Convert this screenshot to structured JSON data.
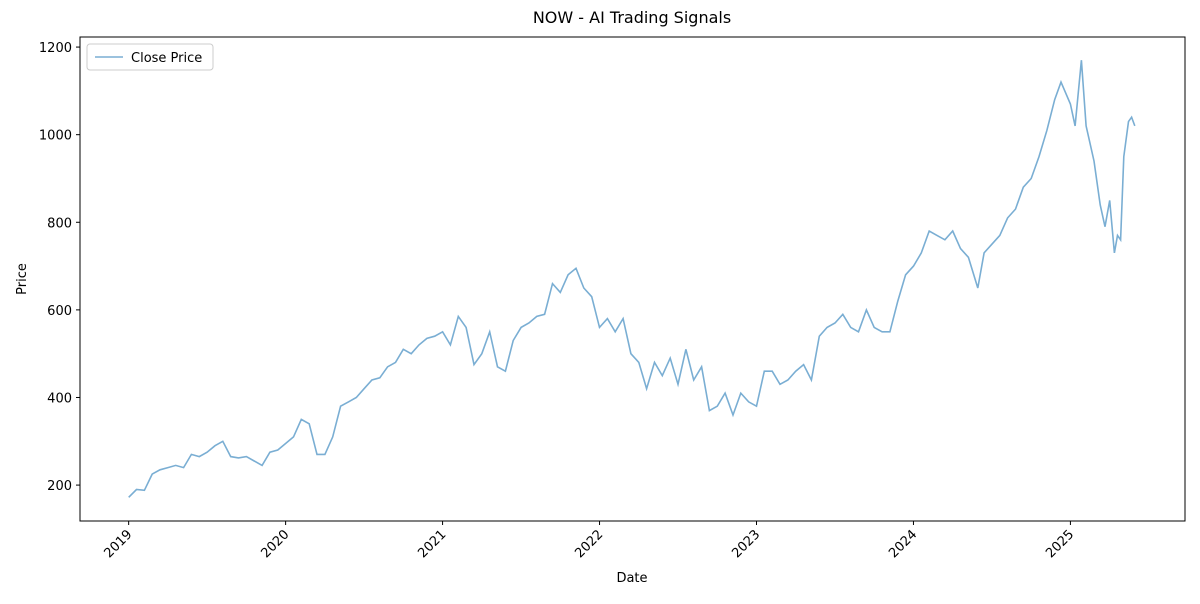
{
  "chart_data": {
    "type": "line",
    "title": "NOW - AI Trading Signals",
    "x_label": "Date",
    "y_label": "Price",
    "xlim": [
      2018.69,
      2025.73
    ],
    "ylim": [
      118,
      1223
    ],
    "xticks": [
      2019,
      2020,
      2021,
      2022,
      2023,
      2024,
      2025
    ],
    "yticks": [
      200,
      400,
      600,
      800,
      1000,
      1200
    ],
    "legend_position": "upper left",
    "x": [
      2019.0,
      2019.05,
      2019.1,
      2019.15,
      2019.2,
      2019.25,
      2019.3,
      2019.35,
      2019.4,
      2019.45,
      2019.5,
      2019.55,
      2019.6,
      2019.65,
      2019.7,
      2019.75,
      2019.8,
      2019.85,
      2019.9,
      2019.95,
      2020.0,
      2020.05,
      2020.1,
      2020.15,
      2020.2,
      2020.25,
      2020.3,
      2020.35,
      2020.4,
      2020.45,
      2020.5,
      2020.55,
      2020.6,
      2020.65,
      2020.7,
      2020.75,
      2020.8,
      2020.85,
      2020.9,
      2020.95,
      2021.0,
      2021.05,
      2021.1,
      2021.15,
      2021.2,
      2021.25,
      2021.3,
      2021.35,
      2021.4,
      2021.45,
      2021.5,
      2021.55,
      2021.6,
      2021.65,
      2021.7,
      2021.75,
      2021.8,
      2021.85,
      2021.9,
      2021.95,
      2022.0,
      2022.05,
      2022.1,
      2022.15,
      2022.2,
      2022.25,
      2022.3,
      2022.35,
      2022.4,
      2022.45,
      2022.5,
      2022.55,
      2022.6,
      2022.65,
      2022.7,
      2022.75,
      2022.8,
      2022.85,
      2022.9,
      2022.95,
      2023.0,
      2023.05,
      2023.1,
      2023.15,
      2023.2,
      2023.25,
      2023.3,
      2023.35,
      2023.4,
      2023.45,
      2023.5,
      2023.55,
      2023.6,
      2023.65,
      2023.7,
      2023.75,
      2023.8,
      2023.85,
      2023.9,
      2023.95,
      2024.0,
      2024.05,
      2024.1,
      2024.15,
      2024.2,
      2024.25,
      2024.3,
      2024.35,
      2024.41,
      2024.45,
      2024.5,
      2024.55,
      2024.6,
      2024.65,
      2024.7,
      2024.75,
      2024.8,
      2024.85,
      2024.9,
      2024.94,
      2025.0,
      2025.03,
      2025.07,
      2025.1,
      2025.15,
      2025.19,
      2025.22,
      2025.25,
      2025.28,
      2025.3,
      2025.32,
      2025.34,
      2025.37,
      2025.39,
      2025.41
    ],
    "series": [
      {
        "name": "Close Price",
        "color": "#7aaed3",
        "values": [
          172,
          190,
          188,
          225,
          235,
          240,
          245,
          240,
          270,
          265,
          275,
          290,
          300,
          265,
          262,
          265,
          255,
          245,
          275,
          280,
          295,
          310,
          350,
          340,
          270,
          270,
          310,
          380,
          390,
          400,
          420,
          440,
          445,
          470,
          480,
          510,
          500,
          520,
          535,
          540,
          550,
          520,
          585,
          560,
          475,
          500,
          550,
          470,
          460,
          530,
          560,
          570,
          585,
          590,
          660,
          640,
          680,
          695,
          650,
          630,
          560,
          580,
          550,
          580,
          500,
          480,
          420,
          480,
          450,
          490,
          430,
          510,
          440,
          470,
          370,
          380,
          410,
          360,
          410,
          390,
          380,
          460,
          460,
          430,
          440,
          460,
          475,
          440,
          540,
          560,
          570,
          590,
          560,
          550,
          600,
          560,
          550,
          550,
          620,
          680,
          700,
          730,
          780,
          770,
          760,
          780,
          740,
          720,
          650,
          730,
          750,
          770,
          810,
          830,
          880,
          900,
          950,
          1010,
          1080,
          1120,
          1070,
          1020,
          1170,
          1020,
          940,
          840,
          790,
          850,
          730,
          770,
          760,
          950,
          1030,
          1040,
          1020
        ]
      }
    ]
  }
}
